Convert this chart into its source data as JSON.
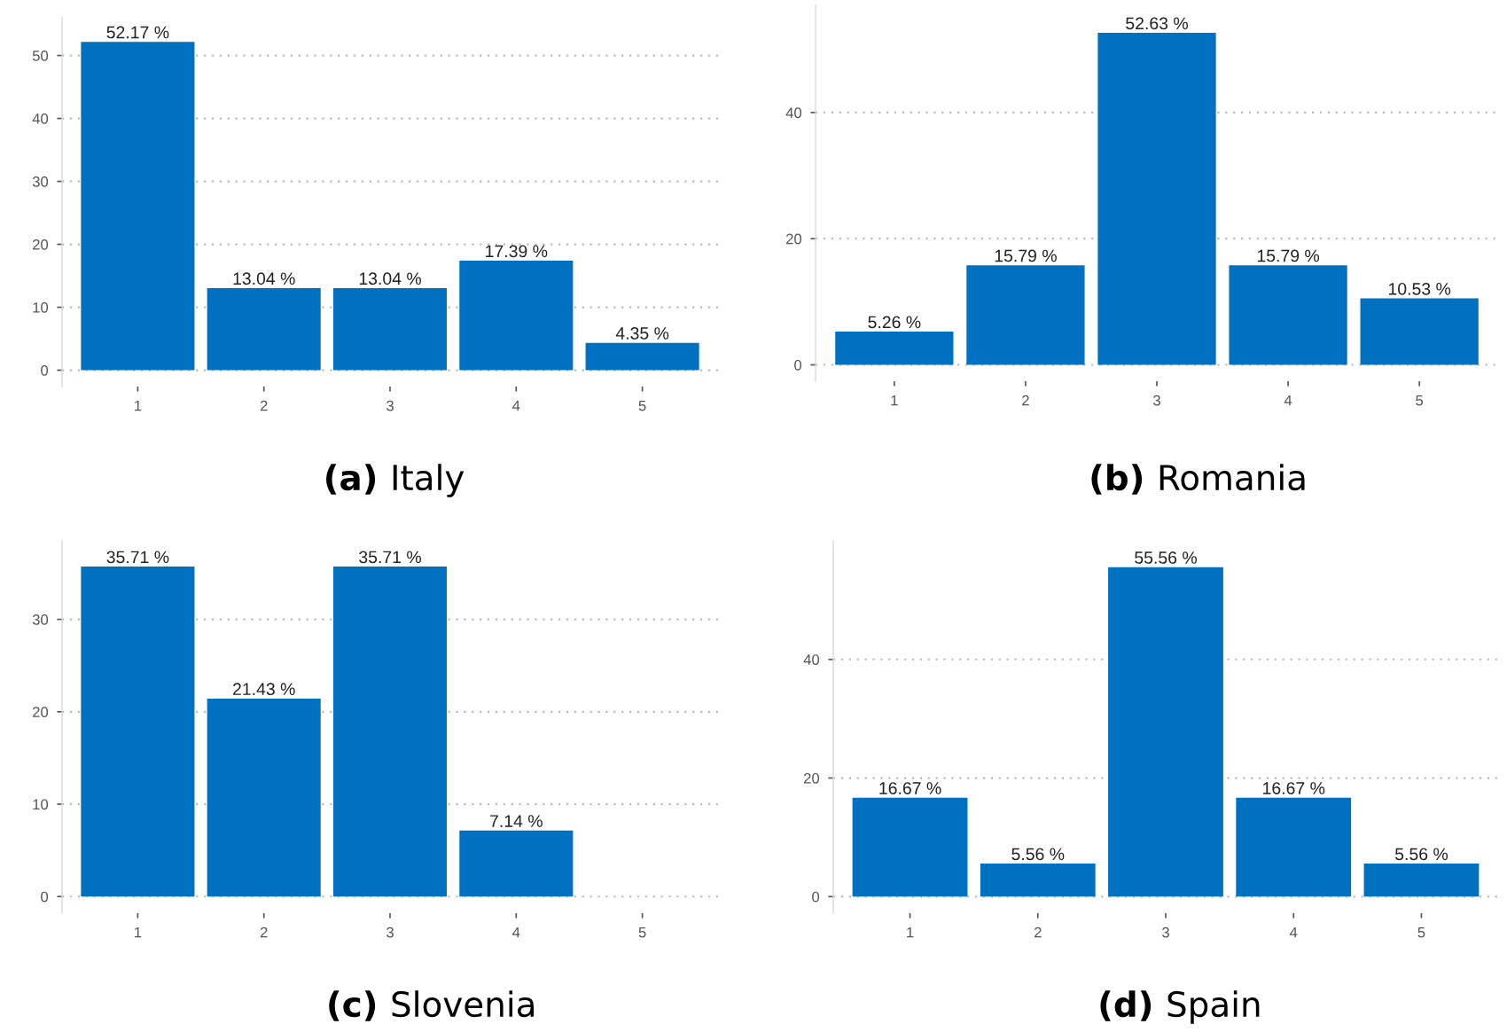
{
  "chart_data": [
    {
      "type": "bar",
      "title": "(a) Italy",
      "categories": [
        "1",
        "2",
        "3",
        "4",
        "5"
      ],
      "values": [
        52.17,
        13.04,
        13.04,
        17.39,
        4.35
      ],
      "value_labels": [
        "52.17 %",
        "13.04 %",
        "13.04 %",
        "17.39 %",
        "4.35 %"
      ],
      "color": "#0070c0",
      "ylim": [
        -2.6,
        56
      ],
      "yticks": [
        0,
        10,
        20,
        30,
        40,
        50
      ],
      "grid": "y"
    },
    {
      "type": "bar",
      "title": "(b) Romania",
      "categories": [
        "1",
        "2",
        "3",
        "4",
        "5"
      ],
      "values": [
        5.26,
        15.79,
        52.63,
        15.79,
        10.53
      ],
      "value_labels": [
        "5.26 %",
        "15.79 %",
        "52.63 %",
        "15.79 %",
        "10.53 %"
      ],
      "color": "#0070c0",
      "ylim": [
        -2.6,
        57
      ],
      "yticks": [
        0,
        20,
        40
      ],
      "grid": "y"
    },
    {
      "type": "bar",
      "title": "(c) Slovenia",
      "categories": [
        "1",
        "2",
        "3",
        "4",
        "5"
      ],
      "values": [
        35.71,
        21.43,
        35.71,
        7.14,
        0
      ],
      "value_labels": [
        "35.71 %",
        "21.43 %",
        "35.71 %",
        "7.14 %",
        null
      ],
      "color": "#0070c0",
      "ylim": [
        -1.8,
        38.5
      ],
      "yticks": [
        0,
        10,
        20,
        30
      ],
      "grid": "y"
    },
    {
      "type": "bar",
      "title": "(d) Spain",
      "categories": [
        "1",
        "2",
        "3",
        "4",
        "5"
      ],
      "values": [
        16.67,
        5.56,
        55.56,
        16.67,
        5.56
      ],
      "value_labels": [
        "16.67 %",
        "5.56 %",
        "55.56 %",
        "16.67 %",
        "5.56 %"
      ],
      "color": "#0070c0",
      "ylim": [
        -2.8,
        60
      ],
      "yticks": [
        0,
        20,
        40
      ],
      "grid": "y"
    }
  ]
}
